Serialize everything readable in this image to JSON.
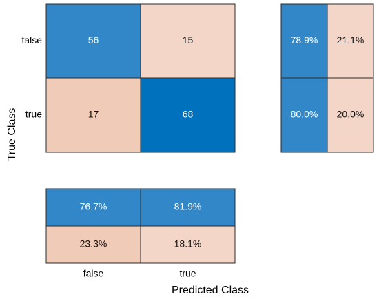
{
  "chart_data": {
    "type": "heatmap",
    "xlabel": "Predicted Class",
    "ylabel": "True Class",
    "classes": [
      "false",
      "true"
    ],
    "confusion_matrix": {
      "rows": [
        {
          "true_class": "false",
          "values": [
            56,
            15
          ]
        },
        {
          "true_class": "true",
          "values": [
            17,
            68
          ]
        }
      ],
      "labels": [
        [
          "56",
          "15"
        ],
        [
          "17",
          "68"
        ]
      ]
    },
    "row_summary": {
      "values": [
        [
          78.9,
          21.1
        ],
        [
          80.0,
          20.0
        ]
      ],
      "labels": [
        [
          "78.9%",
          "21.1%"
        ],
        [
          "80.0%",
          "20.0%"
        ]
      ]
    },
    "column_summary": {
      "values": [
        [
          76.7,
          81.9
        ],
        [
          23.3,
          18.1
        ]
      ],
      "labels": [
        [
          "76.7%",
          "81.9%"
        ],
        [
          "23.3%",
          "18.1%"
        ]
      ]
    },
    "colors": {
      "diagonal_strong": "#0072bd",
      "diagonal": "#3287c8",
      "off_diagonal_strong": "#f0cbb8",
      "off_diagonal": "#f3d6c8",
      "border": "#2b2b2b",
      "text_dark": "#111111",
      "text_light": "#ffffff"
    }
  }
}
